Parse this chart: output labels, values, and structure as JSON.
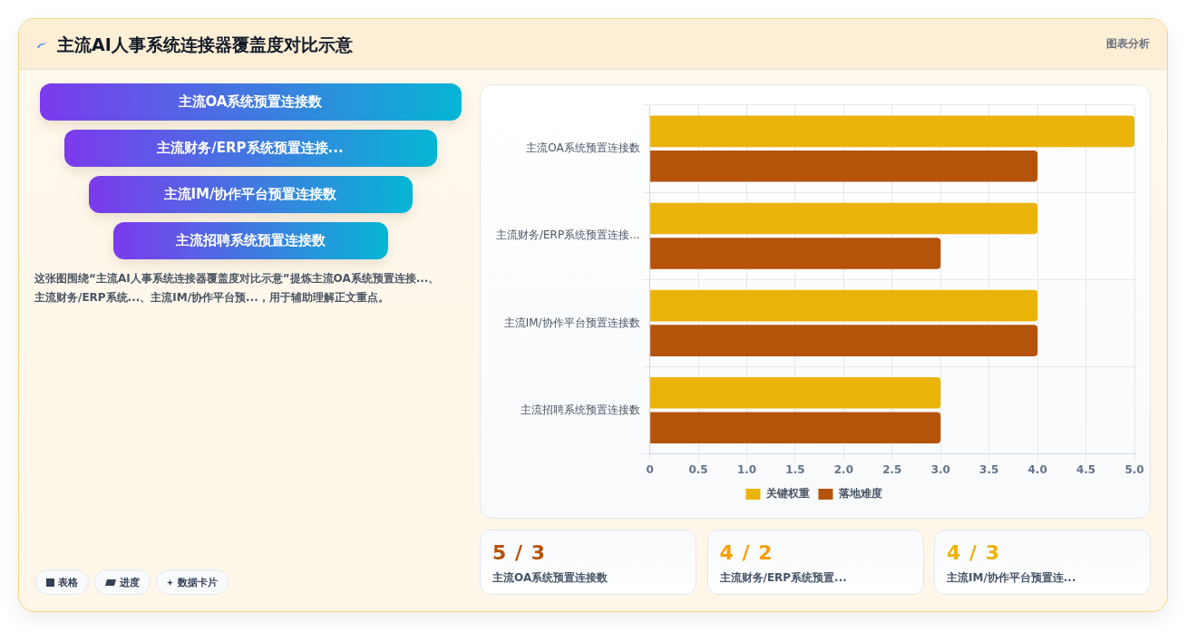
{
  "chart_data": {
    "type": "bar",
    "orientation": "horizontal",
    "title": "主流AI人事系统连接器覆盖度对比示意",
    "categories": [
      "主流OA系统预置连接数",
      "主流财务/ERP系统预置连接...",
      "主流IM/协作平台预置连接数",
      "主流招聘系统预置连接数"
    ],
    "series": [
      {
        "name": "关键权重",
        "color": "#eab308",
        "values": [
          5,
          4,
          4,
          3
        ]
      },
      {
        "name": "落地难度",
        "color": "#b45309",
        "values": [
          4,
          3,
          4,
          3
        ]
      }
    ],
    "xlim": [
      0,
      5
    ],
    "xticks": [
      0,
      0.5,
      {
        "value": 1,
        "label": "1.0"
      },
      1.5,
      {
        "value": 2,
        "label": "2.0"
      },
      2.5,
      {
        "value": 3,
        "label": "3.0"
      },
      3.5,
      {
        "value": 4,
        "label": "4.0"
      },
      4.5,
      {
        "value": 5,
        "label": "5.0"
      }
    ],
    "grid": true,
    "legend": "bottom",
    "annotations": [
      "图表分析",
      "主流OA系统预置连接数",
      "主流财务/ERP系统预置连接...",
      "主流IM/协作平台预置连接数",
      "主流招聘系统预置连接数",
      "这张图围绕“主流AI人事系统连接器覆盖度对比示意”提炼主流OA系统预置连接...、主流财务/ERP系统...、主流IM/协作平台预...，用于辅助理解正文重点。",
      "表格",
      "进度",
      "数据卡片",
      "5 / 3",
      "主流OA系统预置连接数",
      "4 / 2",
      "主流财务/ERP系统预置...",
      "4 / 3",
      "主流IM/协作平台预置连..."
    ]
  }
}
